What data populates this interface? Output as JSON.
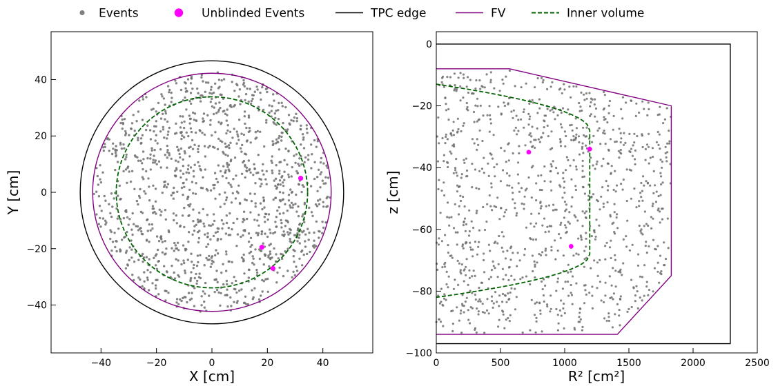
{
  "legend": {
    "items": [
      {
        "label": "Events",
        "marker": "dot",
        "color": "#808080"
      },
      {
        "label": "Unblinded Events",
        "marker": "big-dot",
        "color": "#ff00ff"
      },
      {
        "label": "TPC edge",
        "marker": "line",
        "color": "#000000"
      },
      {
        "label": "FV",
        "marker": "line",
        "color": "#800080"
      },
      {
        "label": "Inner volume",
        "marker": "dashed-line",
        "color": "#006400"
      }
    ]
  },
  "colors": {
    "events": "#6e6e6e",
    "unblinded": "#ff00ff",
    "tpc_edge": "#000000",
    "fv": "#800080",
    "inner_volume": "#006400"
  },
  "chart_data": [
    {
      "type": "scatter",
      "title": "",
      "xlabel": "X [cm]",
      "ylabel": "Y [cm]",
      "xlim": [
        -58,
        58
      ],
      "ylim": [
        -57,
        57
      ],
      "xticks": [
        -40,
        -20,
        0,
        20,
        40
      ],
      "yticks": [
        -40,
        -20,
        0,
        20,
        40
      ],
      "xtick_labels": [
        "−40",
        "−20",
        "0",
        "20",
        "40"
      ],
      "ytick_labels": [
        "−40",
        "−20",
        "0",
        "20",
        "40"
      ],
      "grid": false,
      "boundaries": {
        "tpc_edge": {
          "shape": "circle",
          "center": [
            0,
            0
          ],
          "radius": 47.5
        },
        "fv": {
          "shape": "circle",
          "center": [
            0,
            0
          ],
          "radius": 43
        },
        "inner_volume": {
          "shape": "circle",
          "center": [
            0,
            0
          ],
          "radius": 34.5
        }
      },
      "unblinded_events": [
        {
          "x": 32,
          "y": 5
        },
        {
          "x": 18,
          "y": -19.5
        },
        {
          "x": 22,
          "y": -27
        }
      ],
      "events": {
        "approx_count": 1300,
        "region": "inside fv",
        "distribution": "approximately uniform"
      }
    },
    {
      "type": "scatter",
      "title": "",
      "xlabel": "R² [cm²]",
      "ylabel": "z [cm]",
      "xlim": [
        0,
        2500
      ],
      "ylim": [
        -100,
        4
      ],
      "xticks": [
        0,
        500,
        1000,
        1500,
        2000,
        2500
      ],
      "yticks": [
        -100,
        -80,
        -60,
        -40,
        -20,
        0
      ],
      "xtick_labels": [
        "0",
        "500",
        "1000",
        "1500",
        "2000",
        "2500"
      ],
      "ytick_labels": [
        "−100",
        "−80",
        "−60",
        "−40",
        "−20",
        "0"
      ],
      "grid": false,
      "boundaries": {
        "tpc_edge": {
          "shape": "polyline",
          "points": [
            [
              0,
              0
            ],
            [
              2290,
              0
            ],
            [
              2290,
              -97
            ],
            [
              0,
              -97
            ]
          ]
        },
        "fv": {
          "shape": "polyline",
          "points": [
            [
              0,
              -8
            ],
            [
              570,
              -8
            ],
            [
              1830,
              -20
            ],
            [
              1830,
              -75
            ],
            [
              1410,
              -94
            ],
            [
              0,
              -94
            ]
          ]
        },
        "inner_volume": {
          "shape": "ellipse-arc",
          "points": [
            [
              0,
              -13
            ],
            [
              1195,
              -28
            ],
            [
              1195,
              -68
            ],
            [
              0,
              -82
            ]
          ]
        }
      },
      "unblinded_events": [
        {
          "x": 720,
          "y": -35
        },
        {
          "x": 1195,
          "y": -34
        },
        {
          "x": 1050,
          "y": -65.5
        }
      ],
      "events": {
        "approx_count": 1100,
        "region": "inside fv",
        "distribution": "approximately uniform"
      }
    }
  ]
}
